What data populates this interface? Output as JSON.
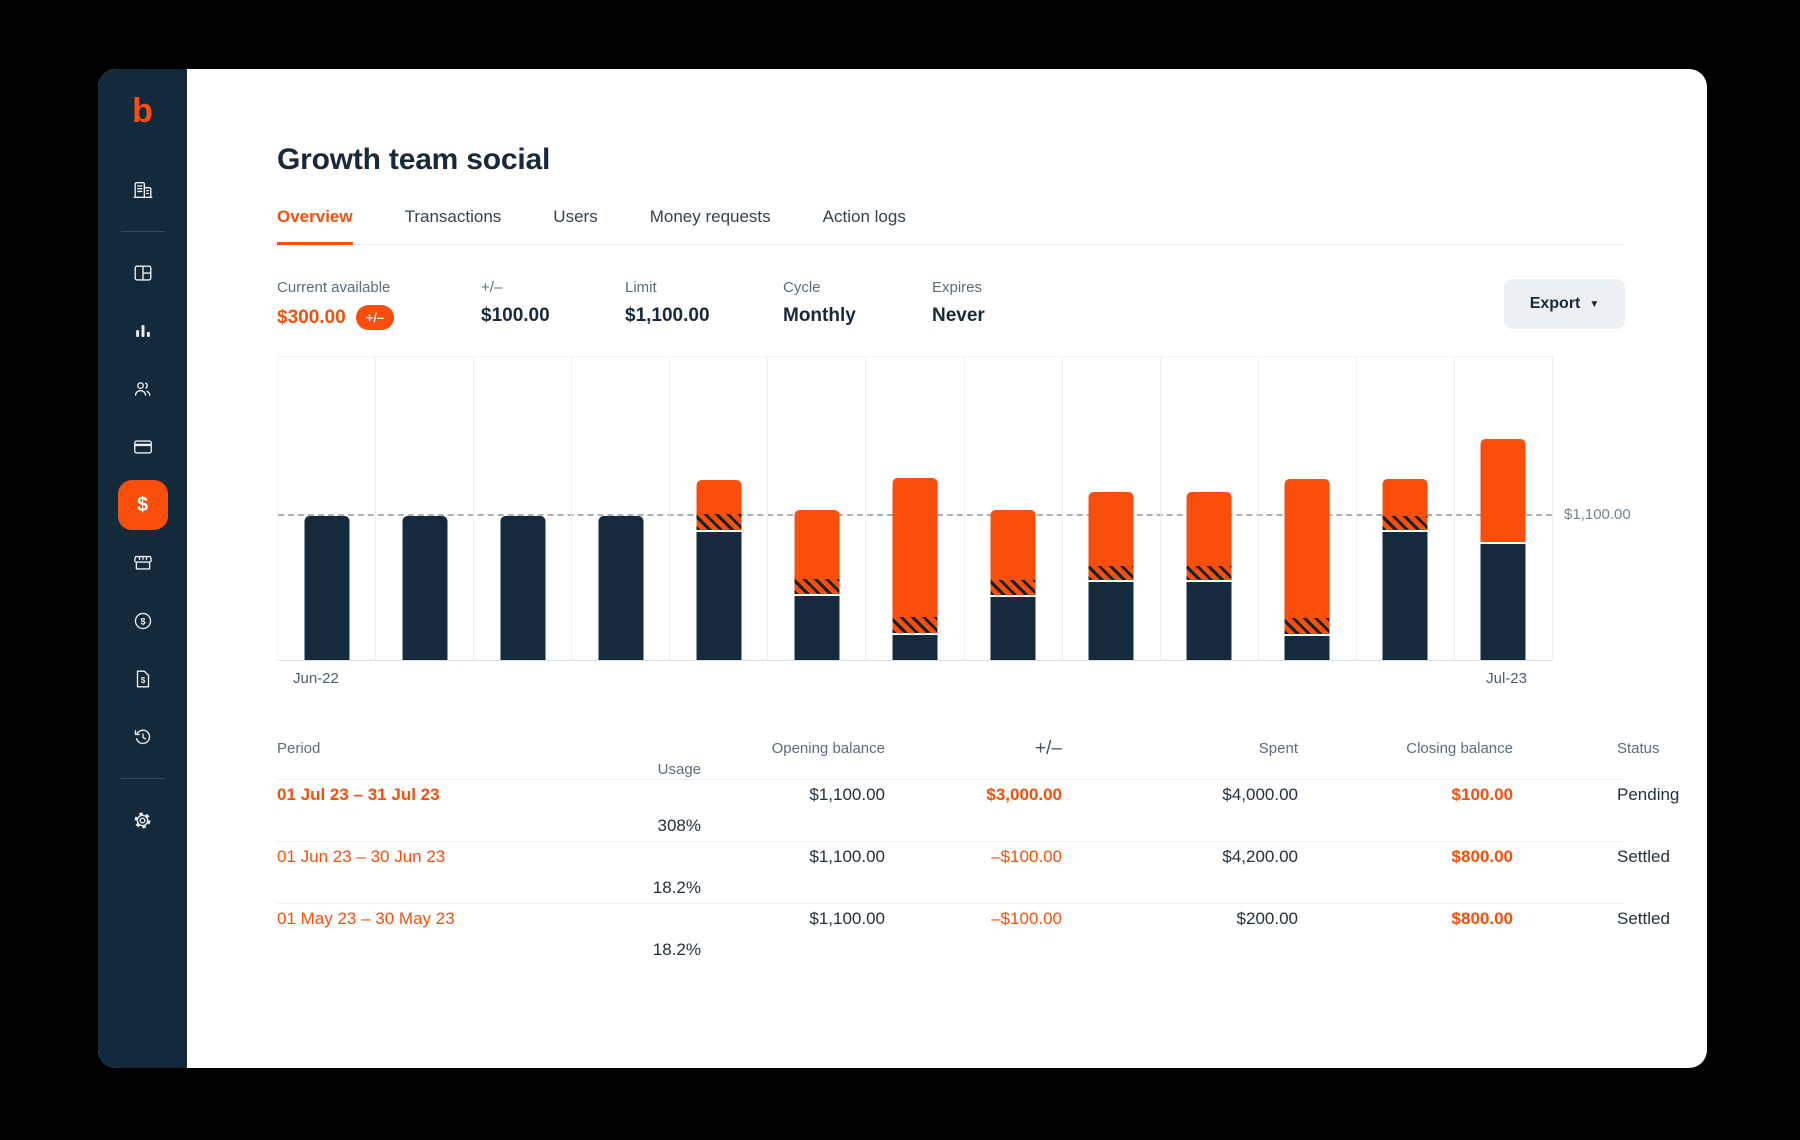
{
  "app": {
    "logo": "b"
  },
  "sidebar": {
    "icons": [
      "company",
      "dashboard",
      "analytics",
      "members",
      "cards",
      "budgets",
      "merchants",
      "payments",
      "invoices",
      "history",
      "settings"
    ],
    "active_icon": "budgets",
    "active_glyph": "$",
    "accent_color": "#FA4E0C",
    "background_color": "#132A3C"
  },
  "header": {
    "title": "Growth team social",
    "tabs": [
      {
        "label": "Overview",
        "active": true
      },
      {
        "label": "Transactions",
        "active": false
      },
      {
        "label": "Users",
        "active": false
      },
      {
        "label": "Money requests",
        "active": false
      },
      {
        "label": "Action logs",
        "active": false
      }
    ]
  },
  "stats": [
    {
      "label": "Current available",
      "value": "$300.00",
      "badge": "+/–",
      "accent": true
    },
    {
      "label": "+/–",
      "value": "$100.00"
    },
    {
      "label": "Limit",
      "value": "$1,100.00"
    },
    {
      "label": "Cycle",
      "value": "Monthly"
    },
    {
      "label": "Expires",
      "value": "Never"
    }
  ],
  "toolbar": {
    "export_label": "Export",
    "export_caret": "▼"
  },
  "chart_data": {
    "type": "bar",
    "stacked": true,
    "grid": "vertical-only",
    "x_axis": {
      "first_label": "Jun-22",
      "last_label": "Jul-23"
    },
    "limit_line": {
      "value": 1100,
      "label": "$1,100.00"
    },
    "plot_max_value": 2330,
    "segment_colors": {
      "navy": "#152A3C",
      "hatched": "orange with black diagonal stripes",
      "orange": "#FA4E0C"
    },
    "bars": [
      {
        "navy": 1100,
        "hatched": 0,
        "orange": 0
      },
      {
        "navy": 1100,
        "hatched": 0,
        "orange": 0
      },
      {
        "navy": 1100,
        "hatched": 0,
        "orange": 0
      },
      {
        "navy": 1100,
        "hatched": 0,
        "orange": 0
      },
      {
        "navy": 980,
        "hatched": 120,
        "orange": 260
      },
      {
        "navy": 490,
        "hatched": 115,
        "orange": 525
      },
      {
        "navy": 190,
        "hatched": 120,
        "orange": 1060
      },
      {
        "navy": 480,
        "hatched": 115,
        "orange": 535
      },
      {
        "navy": 595,
        "hatched": 110,
        "orange": 565
      },
      {
        "navy": 595,
        "hatched": 110,
        "orange": 565
      },
      {
        "navy": 185,
        "hatched": 120,
        "orange": 1065
      },
      {
        "navy": 975,
        "hatched": 105,
        "orange": 280
      },
      {
        "navy": 885,
        "hatched": 0,
        "orange": 785
      }
    ]
  },
  "table": {
    "columns": [
      {
        "label": "Period"
      },
      {
        "label": "Opening balance"
      },
      {
        "label": "+/–"
      },
      {
        "label": "Spent"
      },
      {
        "label": "Closing balance"
      },
      {
        "label": "Status"
      },
      {
        "label": "Usage"
      }
    ],
    "rows": [
      {
        "period": "01 Jul 23 – 31 Jul 23",
        "opening_balance": "$1,100.00",
        "plus_minus": "$3,000.00",
        "spent": "$4,000.00",
        "closing_balance": "$100.00",
        "status": "Pending",
        "usage": "308%"
      },
      {
        "period": "01 Jun 23 – 30 Jun 23",
        "opening_balance": "$1,100.00",
        "plus_minus": "–$100.00",
        "spent": "$4,200.00",
        "closing_balance": "$800.00",
        "status": "Settled",
        "usage": "18.2%"
      },
      {
        "period": "01 May 23 – 30 May 23",
        "opening_balance": "$1,100.00",
        "plus_minus": "–$100.00",
        "spent": "$200.00",
        "closing_balance": "$800.00",
        "status": "Settled",
        "usage": "18.2%"
      }
    ]
  }
}
